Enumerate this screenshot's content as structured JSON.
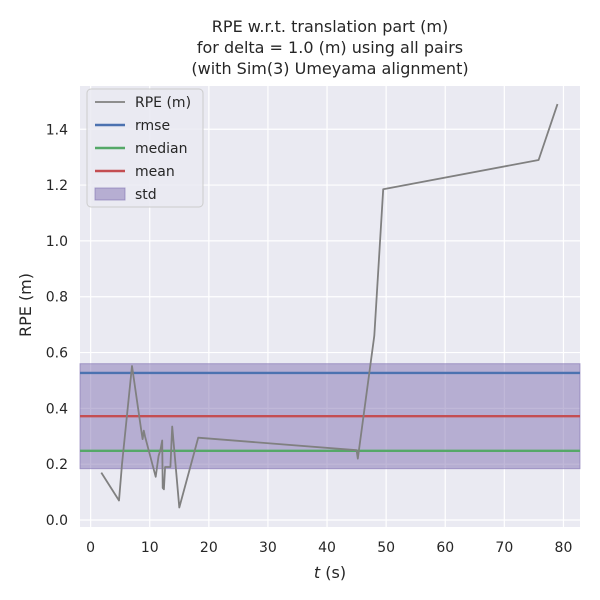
{
  "chart_data": {
    "type": "line",
    "title_lines": [
      "RPE w.r.t. translation part (m)",
      "for delta = 1.0 (m) using all pairs",
      "(with Sim(3) Umeyama alignment)"
    ],
    "xlabel_italic": "t",
    "xlabel_rest": " (s)",
    "ylabel": "RPE (m)",
    "xlim": [
      -1.8,
      82.8
    ],
    "ylim": [
      -0.025,
      1.555
    ],
    "xticks": [
      0,
      10,
      20,
      30,
      40,
      50,
      60,
      70,
      80
    ],
    "yticks": [
      0.0,
      0.2,
      0.4,
      0.6,
      0.8,
      1.0,
      1.2,
      1.4
    ],
    "grid": true,
    "legend_position": "top-left",
    "series": [
      {
        "name": "RPE (m)",
        "color": "#808080",
        "x": [
          1.8,
          4.8,
          5.3,
          7.0,
          8.5,
          8.8,
          9.0,
          9.2,
          11.0,
          11.5,
          11.8,
          12.1,
          12.2,
          12.4,
          12.6,
          13.5,
          13.8,
          15.0,
          17.5,
          18.2,
          45.0,
          45.2,
          48.0,
          49.5,
          75.8,
          79.0
        ],
        "y": [
          0.17,
          0.07,
          0.2,
          0.552,
          0.33,
          0.29,
          0.32,
          0.3,
          0.155,
          0.23,
          0.25,
          0.285,
          0.115,
          0.11,
          0.19,
          0.19,
          0.335,
          0.045,
          0.24,
          0.295,
          0.25,
          0.22,
          0.66,
          1.185,
          1.29,
          1.49
        ]
      }
    ],
    "stats": {
      "rmse": {
        "name": "rmse",
        "value": 0.527,
        "color": "#4c72b0"
      },
      "median": {
        "name": "median",
        "value": 0.248,
        "color": "#55a868"
      },
      "mean": {
        "name": "mean",
        "value": 0.372,
        "color": "#c44e52"
      },
      "std": {
        "name": "std",
        "low": 0.184,
        "high": 0.56,
        "color": "#8172b2"
      }
    },
    "legend_order": [
      "RPE (m)",
      "rmse",
      "median",
      "mean",
      "std"
    ]
  },
  "colors": {
    "plot_background": "#eaeaf2",
    "grid": "#ffffff"
  }
}
